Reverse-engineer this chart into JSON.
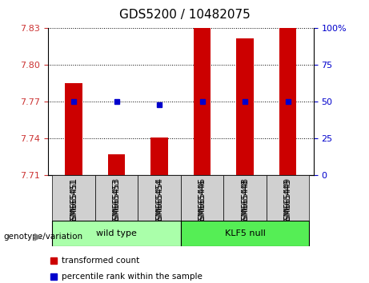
{
  "title": "GDS5200 / 10482075",
  "samples": [
    "GSM665451",
    "GSM665453",
    "GSM665454",
    "GSM665446",
    "GSM665448",
    "GSM665449"
  ],
  "groups": {
    "wild type": [
      "GSM665451",
      "GSM665453",
      "GSM665454"
    ],
    "KLF5 null": [
      "GSM665446",
      "GSM665448",
      "GSM665449"
    ]
  },
  "transformed_counts": [
    7.785,
    7.727,
    7.741,
    7.83,
    7.822,
    7.83
  ],
  "percentile_ranks": [
    50,
    50,
    50,
    50,
    50,
    50
  ],
  "percentile_values": [
    7.77,
    7.77,
    7.768,
    7.77,
    7.77,
    7.77
  ],
  "ymin": 7.71,
  "ymax": 7.83,
  "yticks": [
    7.71,
    7.74,
    7.77,
    7.8,
    7.83
  ],
  "ytick_labels": [
    "7.71",
    "7.74",
    "7.77",
    "7.80",
    "7.83"
  ],
  "right_yticks": [
    0,
    25,
    50,
    75,
    100
  ],
  "right_ytick_labels": [
    "0",
    "25",
    "50",
    "75",
    "100%"
  ],
  "bar_color": "#cc0000",
  "dot_color": "#0000cc",
  "tick_label_color": "#cc3333",
  "right_tick_color": "#0000cc",
  "group_colors": {
    "wild type": "#aaffaa",
    "KLF5 null": "#55ee55"
  },
  "legend_items": [
    "transformed count",
    "percentile rank within the sample"
  ],
  "genotype_label": "genotype/variation"
}
